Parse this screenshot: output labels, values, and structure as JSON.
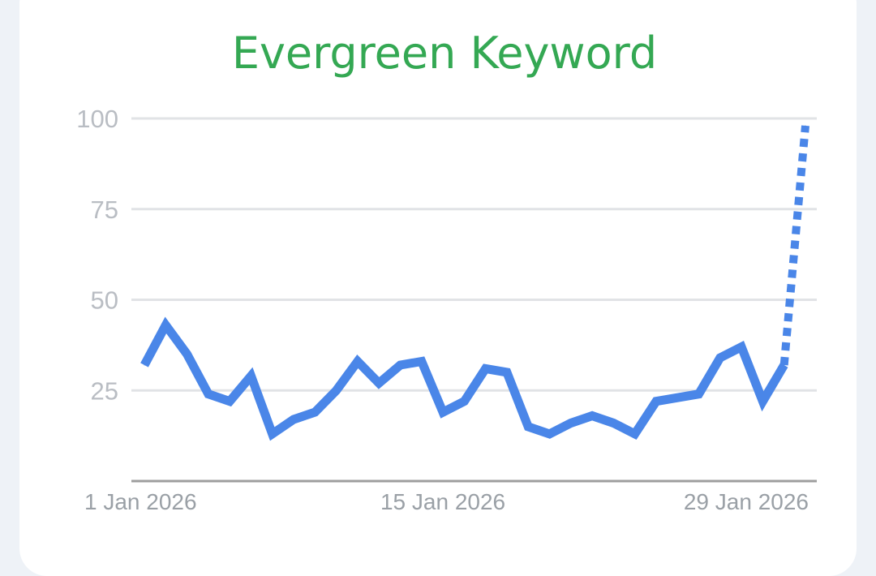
{
  "chart_data": {
    "type": "line",
    "title": "Evergreen Keyword",
    "xlabel": "",
    "ylabel": "",
    "x": [
      "1 Jan 2026",
      "2 Jan 2026",
      "3 Jan 2026",
      "4 Jan 2026",
      "5 Jan 2026",
      "6 Jan 2026",
      "7 Jan 2026",
      "8 Jan 2026",
      "9 Jan 2026",
      "10 Jan 2026",
      "11 Jan 2026",
      "12 Jan 2026",
      "13 Jan 2026",
      "14 Jan 2026",
      "15 Jan 2026",
      "16 Jan 2026",
      "17 Jan 2026",
      "18 Jan 2026",
      "19 Jan 2026",
      "20 Jan 2026",
      "21 Jan 2026",
      "22 Jan 2026",
      "23 Jan 2026",
      "24 Jan 2026",
      "25 Jan 2026",
      "26 Jan 2026",
      "27 Jan 2026",
      "28 Jan 2026",
      "29 Jan 2026",
      "30 Jan 2026",
      "31 Jan 2026",
      "1 Feb 2026"
    ],
    "series": [
      {
        "values": [
          32,
          43,
          35,
          24,
          22,
          29,
          13,
          17,
          19,
          25,
          33,
          27,
          32,
          33,
          19,
          22,
          31,
          30,
          15,
          13,
          16,
          18,
          16,
          13,
          22,
          23,
          24,
          34,
          37,
          22,
          32,
          98
        ],
        "dashed_from_index": 30
      }
    ],
    "x_ticks": [
      "1 Jan 2026",
      "15 Jan 2026",
      "29 Jan 2026"
    ],
    "y_ticks": [
      "100",
      "75",
      "50",
      "25"
    ],
    "ylim": [
      0,
      100
    ],
    "grid": true,
    "line_color": "#4a86e8"
  }
}
